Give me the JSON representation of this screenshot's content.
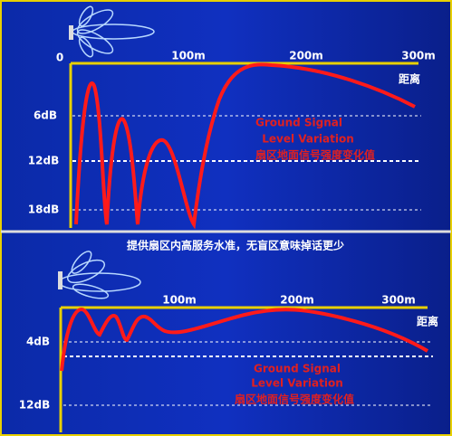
{
  "top": {
    "origin": "0",
    "x_labels": [
      "100m",
      "200m",
      "300m"
    ],
    "x_unit": "距离",
    "y_labels": [
      "6dB",
      "12dB",
      "18dB"
    ],
    "annotation": [
      "Ground Signal",
      "Level Variation",
      "扇区地面信号强度变化值"
    ]
  },
  "bottom": {
    "title": "提供扇区内高服务水准，无盲区意味掉话更少",
    "x_labels": [
      "100m",
      "200m",
      "300m"
    ],
    "x_unit": "距离",
    "y_labels": [
      "4dB",
      "12dB"
    ],
    "annotation": [
      "Ground Signal",
      "Level Variation",
      "扇区地面信号强度变化值"
    ]
  }
}
